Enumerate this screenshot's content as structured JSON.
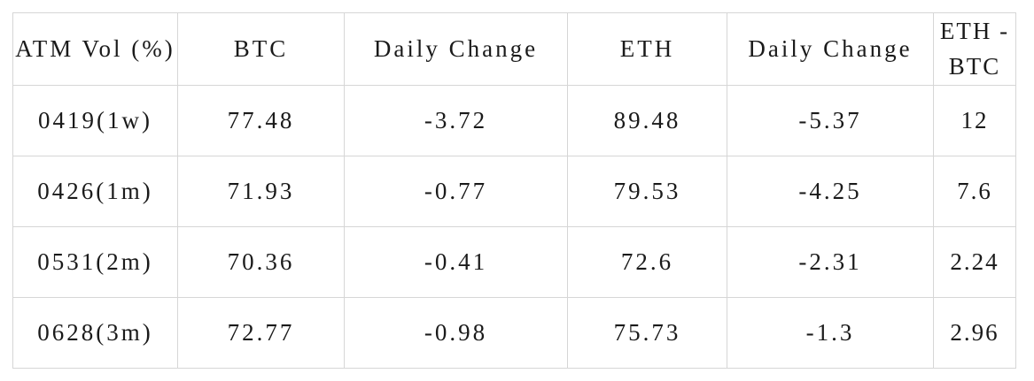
{
  "colors": {
    "background": "#ffffff",
    "border": "#d6d6d6",
    "text": "#1a1a1a"
  },
  "chart_data": {
    "type": "table",
    "title": "ATM Vol (%)",
    "columns": [
      "ATM Vol (%)",
      "BTC",
      "Daily Change",
      "ETH",
      "Daily Change",
      "ETH - BTC"
    ],
    "rows": [
      [
        "0419(1w)",
        "77.48",
        "-3.72",
        "89.48",
        "-5.37",
        "12"
      ],
      [
        "0426(1m)",
        "71.93",
        "-0.77",
        "79.53",
        "-4.25",
        "7.6"
      ],
      [
        "0531(2m)",
        "70.36",
        "-0.41",
        "72.6",
        "-2.31",
        "2.24"
      ],
      [
        "0628(3m)",
        "72.77",
        "-0.98",
        "75.73",
        "-1.3",
        "2.96"
      ]
    ]
  }
}
